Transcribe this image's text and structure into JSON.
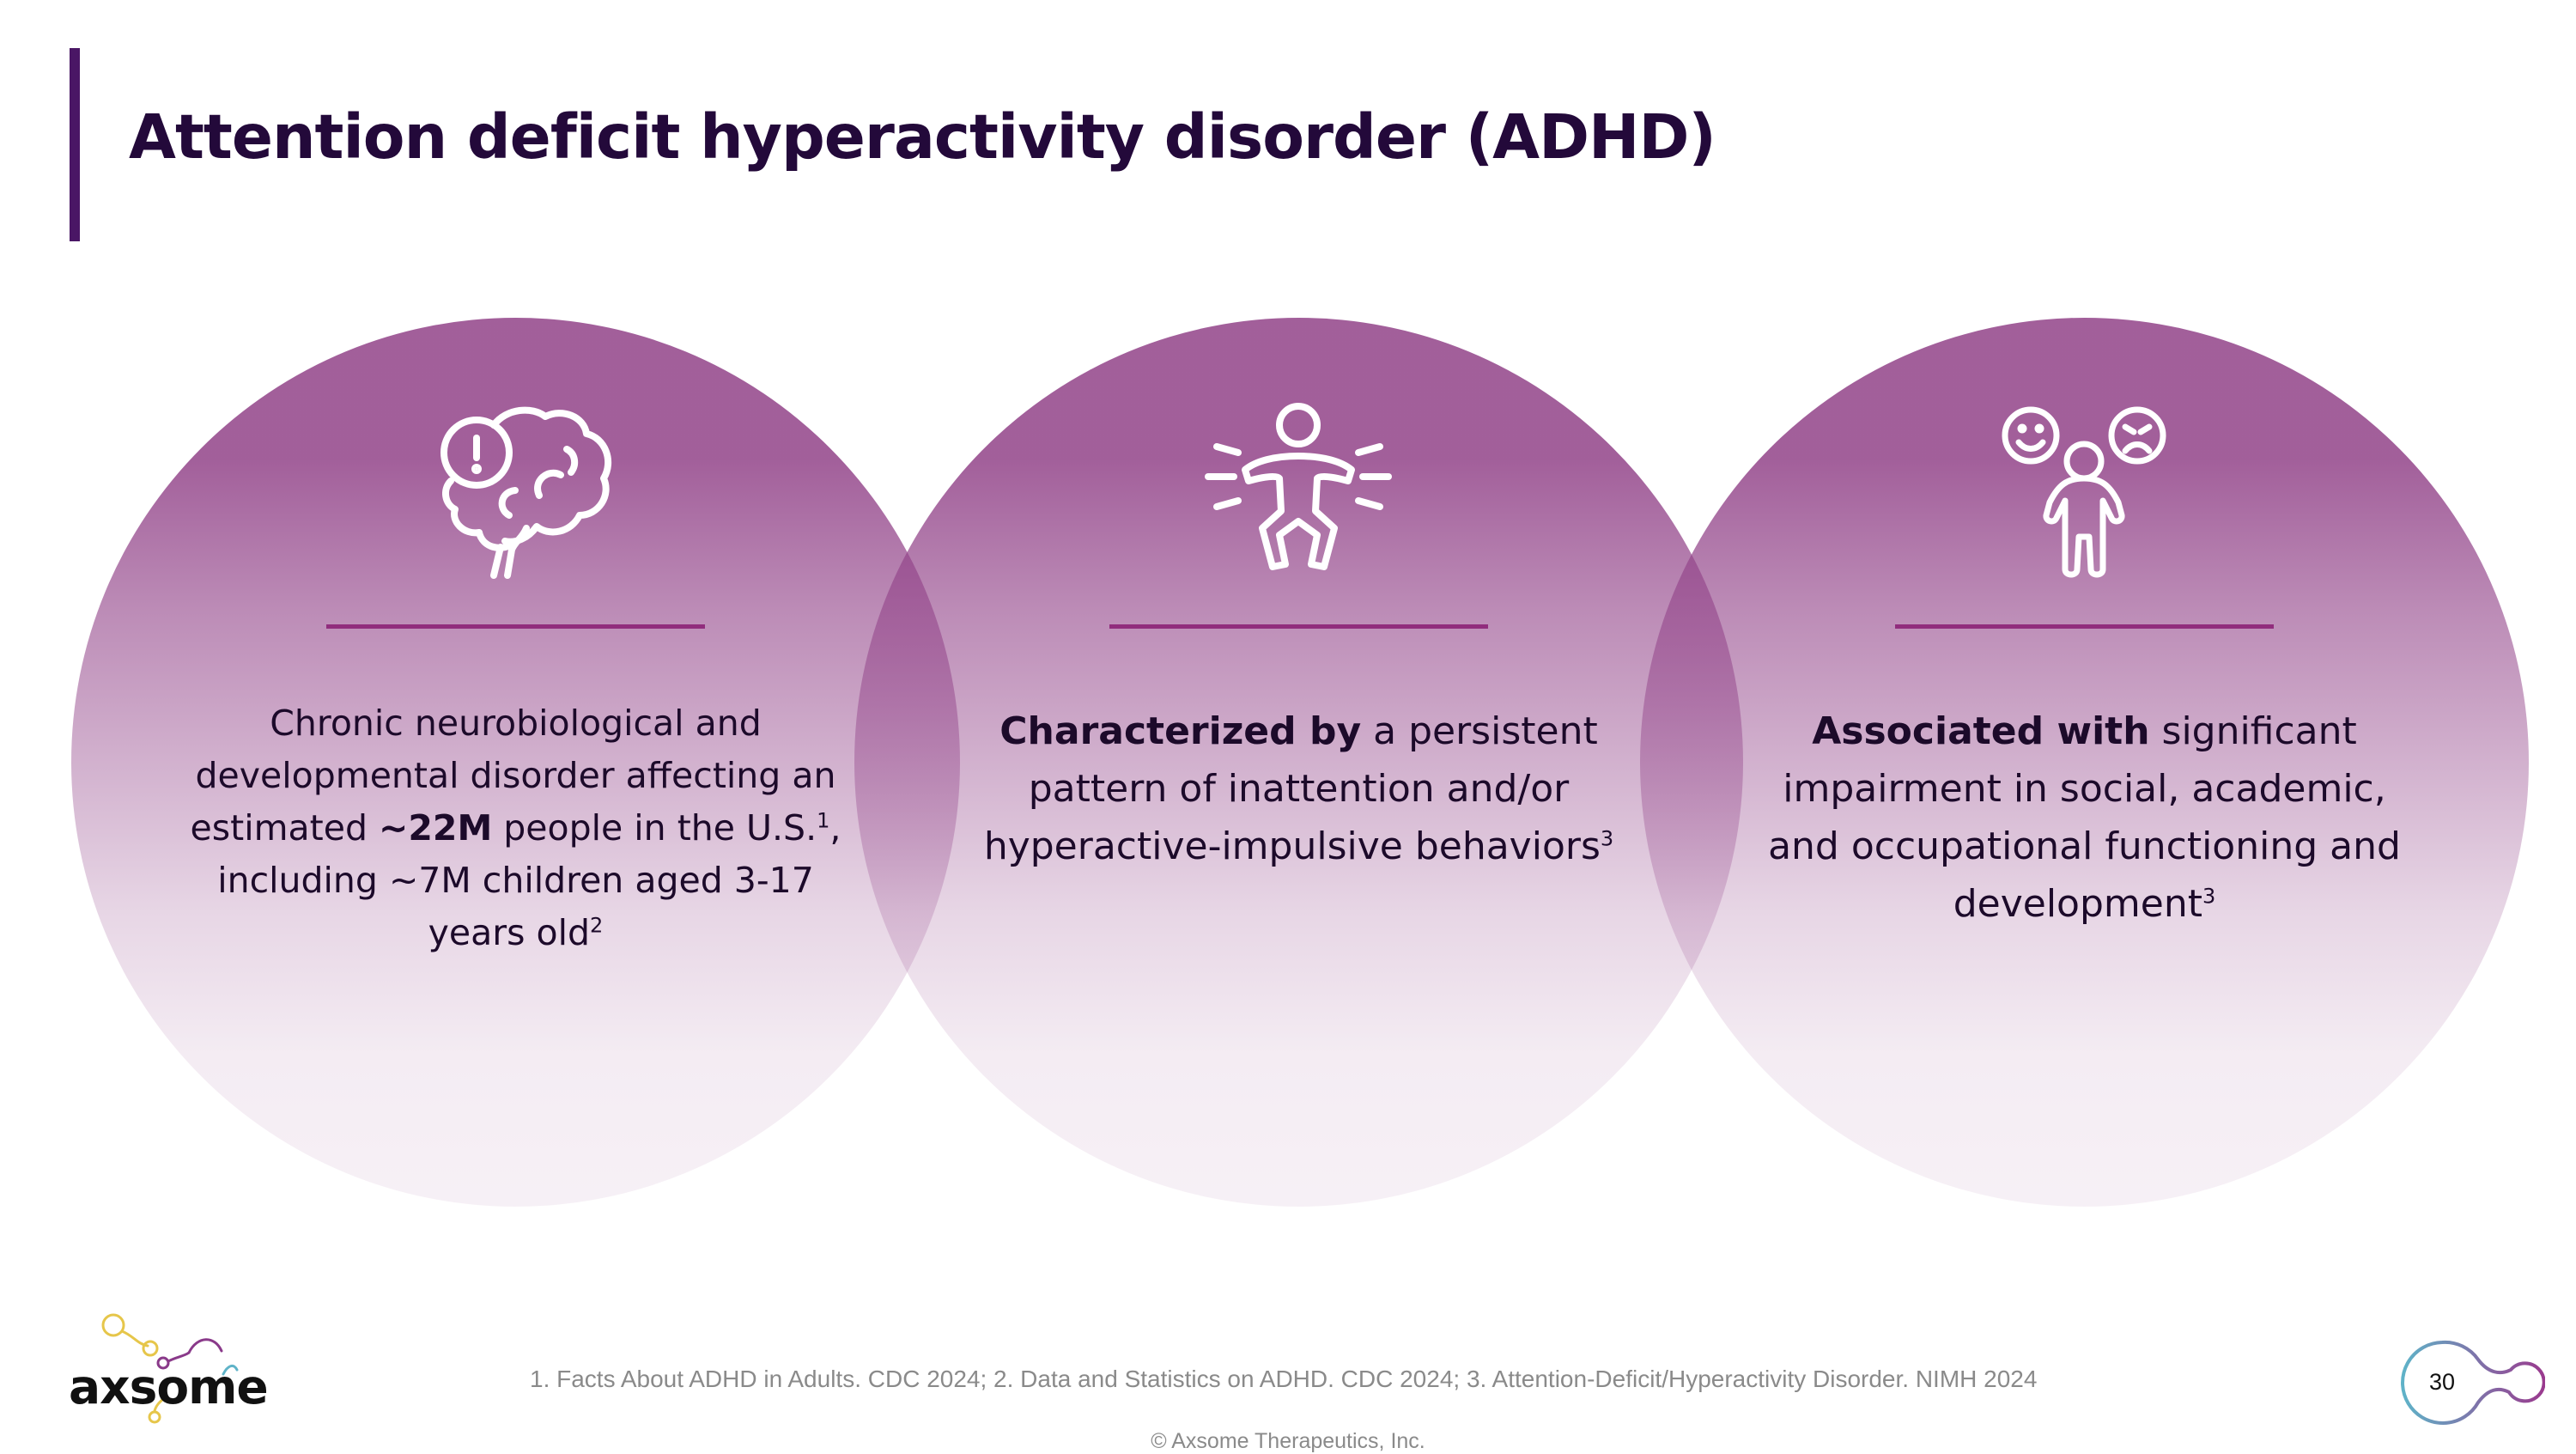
{
  "slide": {
    "title": "Attention deficit hyperactivity disorder (ADHD)",
    "page_number": "30"
  },
  "panels": [
    {
      "icon": "brain-alert-icon",
      "parts": [
        {
          "text": "Chronic neurobiological and developmental disorder affecting an estimated ",
          "bold": false
        },
        {
          "text": "~22M",
          "bold": true
        },
        {
          "text": " people in the U.S.",
          "bold": false
        },
        {
          "text": "1",
          "sup": true
        },
        {
          "text": ", including ~7M children aged 3-17 years old",
          "bold": false
        },
        {
          "text": "2",
          "sup": true
        }
      ]
    },
    {
      "icon": "hyperactive-child-icon",
      "parts": [
        {
          "text": "Characterized by",
          "bold": true
        },
        {
          "text": " a persistent pattern of inattention and/or hyperactive-impulsive behaviors",
          "bold": false
        },
        {
          "text": "3",
          "sup": true
        }
      ]
    },
    {
      "icon": "social-emotions-child-icon",
      "parts": [
        {
          "text": "Associated with",
          "bold": true
        },
        {
          "text": " significant impairment in social, academic, and occupational functioning and development",
          "bold": false
        },
        {
          "text": "3",
          "sup": true
        }
      ]
    }
  ],
  "footer": {
    "logo_text": "axsome",
    "references": "1. Facts About ADHD in Adults. CDC 2024; 2. Data and Statistics on ADHD. CDC 2024; 3. Attention-Deficit/Hyperactivity Disorder. NIMH 2024",
    "copyright": "© Axsome Therapeutics, Inc."
  },
  "colors": {
    "title": "#23093a",
    "accent_bar": "#4a1665",
    "circle": "#93458a",
    "divider": "#912d7d"
  }
}
